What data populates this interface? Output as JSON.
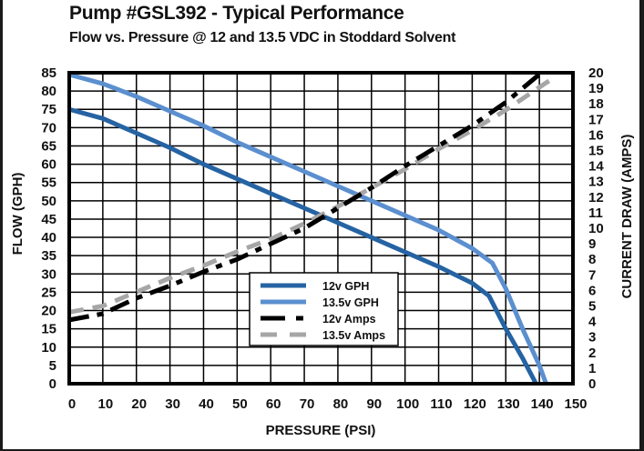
{
  "chart_data": {
    "type": "line",
    "title": "Pump #GSL392 - Typical Performance",
    "subtitle": "Flow vs. Pressure @ 12 and 13.5 VDC in Stoddard Solvent",
    "xlabel": "PRESSURE (PSI)",
    "ylabel": "FLOW (GPH)",
    "y2label": "CURRENT DRAW (AMPS)",
    "xlim": [
      0,
      150
    ],
    "ylim": [
      0,
      85
    ],
    "y2lim": [
      0,
      20
    ],
    "x_ticks": [
      0,
      10,
      20,
      30,
      40,
      50,
      60,
      70,
      80,
      90,
      100,
      110,
      120,
      130,
      140,
      150
    ],
    "y_ticks": [
      0,
      5,
      10,
      15,
      20,
      25,
      30,
      35,
      40,
      45,
      50,
      55,
      60,
      65,
      70,
      75,
      80,
      85
    ],
    "y2_ticks": [
      0,
      1,
      2,
      3,
      4,
      5,
      6,
      7,
      8,
      9,
      10,
      11,
      12,
      13,
      14,
      15,
      16,
      17,
      18,
      19,
      20
    ],
    "grid": true,
    "legend_position": "center-bottom",
    "series": [
      {
        "name": "12v GPH",
        "axis": "left",
        "style": "solid",
        "color": "#2563a3",
        "x": [
          0,
          10,
          20,
          30,
          40,
          50,
          60,
          70,
          80,
          90,
          100,
          110,
          120,
          125,
          130,
          135,
          139
        ],
        "y": [
          75,
          72.5,
          68.5,
          64.5,
          60,
          56,
          52,
          48,
          44,
          40,
          36,
          32,
          27.5,
          24,
          15,
          7,
          0
        ]
      },
      {
        "name": "13.5v GPH",
        "axis": "left",
        "style": "solid",
        "color": "#5b8fcf",
        "x": [
          0,
          10,
          20,
          30,
          40,
          50,
          60,
          70,
          80,
          90,
          100,
          110,
          120,
          126,
          130,
          135,
          140,
          142
        ],
        "y": [
          84.5,
          82,
          78.5,
          74.5,
          70.5,
          66,
          62,
          58,
          54,
          50,
          46,
          42,
          37,
          33,
          26,
          15,
          5,
          0
        ]
      },
      {
        "name": "12v Amps",
        "axis": "right",
        "style": "dash-dot",
        "color": "#000000",
        "x": [
          0,
          10,
          20,
          30,
          40,
          50,
          60,
          70,
          80,
          90,
          100,
          110,
          120,
          130,
          140
        ],
        "y": [
          4.1,
          4.5,
          5.5,
          6.3,
          7.2,
          8.0,
          9.0,
          10.0,
          11.3,
          12.6,
          14.0,
          15.3,
          16.6,
          18.1,
          19.9
        ]
      },
      {
        "name": "13.5v Amps",
        "axis": "right",
        "style": "dashed",
        "color": "#a6a6a6",
        "x": [
          0,
          10,
          20,
          30,
          40,
          50,
          60,
          70,
          80,
          90,
          100,
          110,
          120,
          130,
          143
        ],
        "y": [
          4.6,
          5.0,
          5.9,
          6.8,
          7.6,
          8.5,
          9.3,
          10.3,
          11.4,
          12.6,
          13.8,
          15.1,
          16.3,
          17.6,
          19.5
        ]
      }
    ]
  }
}
